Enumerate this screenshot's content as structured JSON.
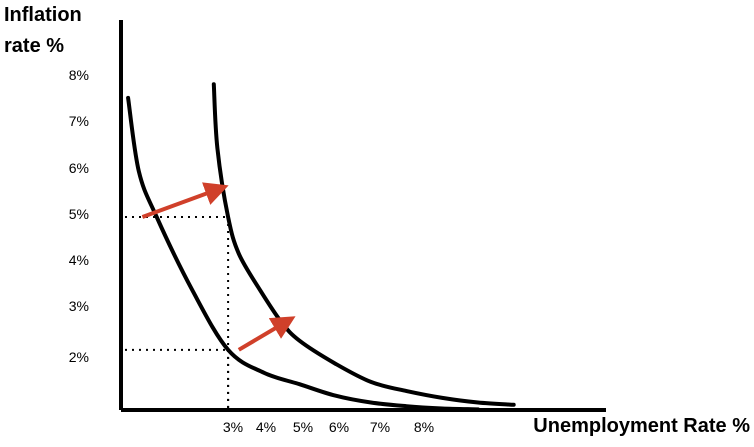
{
  "chart_data": {
    "type": "line",
    "title": "",
    "ylabel_line1": "Inflation",
    "ylabel_line2": "rate %",
    "xlabel": "Unemployment Rate %",
    "y_ticks": [
      "8%",
      "7%",
      "6%",
      "5%",
      "4%",
      "3%",
      "2%"
    ],
    "x_ticks": [
      "3%",
      "4%",
      "5%",
      "6%",
      "7%",
      "8%"
    ],
    "ylim": [
      1,
      8
    ],
    "xlim": [
      0,
      13
    ],
    "series": [
      {
        "curve": "original",
        "x": [
          0.2,
          0.5,
          1.0,
          2.0,
          3.0,
          4.0,
          5.0,
          6.0,
          7.0,
          8.0,
          9.0,
          10.0
        ],
        "y": [
          7.7,
          6.1,
          5.1,
          3.5,
          2.2,
          1.7,
          1.45,
          1.2,
          1.05,
          0.97,
          0.92,
          0.9
        ]
      },
      {
        "curve": "shifted",
        "x": [
          2.6,
          2.7,
          3.0,
          3.3,
          3.9,
          4.5,
          5.0,
          6.0,
          7.0,
          8.0,
          9.0,
          10.0,
          11.0
        ],
        "y": [
          8.0,
          6.6,
          5.1,
          4.3,
          3.5,
          2.8,
          2.4,
          1.9,
          1.5,
          1.3,
          1.15,
          1.05,
          1.0
        ]
      }
    ],
    "reference_lines": [
      {
        "x": 3,
        "y": 5.1
      },
      {
        "x": 3,
        "y": 2.2
      }
    ],
    "arrows": [
      {
        "from": [
          0.6,
          5.1
        ],
        "to": [
          2.7,
          5.7
        ]
      },
      {
        "from": [
          3.3,
          2.2
        ],
        "to": [
          4.6,
          2.8
        ]
      }
    ],
    "arrow_color": "#d0402a",
    "curve_color": "#000000",
    "grid": false,
    "legend": "none"
  }
}
